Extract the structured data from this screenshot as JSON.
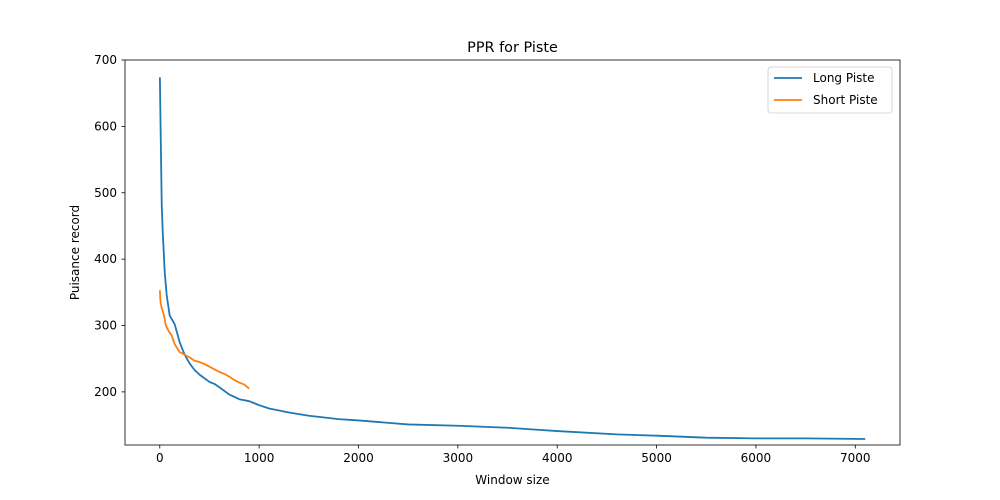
{
  "chart_data": {
    "type": "line",
    "title": "PPR for Piste",
    "xlabel": "Window size",
    "ylabel": "Puisance record",
    "xlim": [
      -350,
      7450
    ],
    "ylim": [
      120,
      700
    ],
    "xticks": [
      0,
      1000,
      2000,
      3000,
      4000,
      5000,
      6000,
      7000
    ],
    "yticks": [
      200,
      300,
      400,
      500,
      600,
      700
    ],
    "grid": false,
    "legend_position": "top-right",
    "series": [
      {
        "name": "Long Piste",
        "color": "#1f77b4",
        "x": [
          1,
          10,
          20,
          30,
          50,
          70,
          100,
          150,
          200,
          250,
          300,
          350,
          400,
          500,
          550,
          600,
          700,
          800,
          900,
          1000,
          1100,
          1300,
          1500,
          1800,
          2000,
          2500,
          3000,
          3500,
          3800,
          4000,
          4600,
          5000,
          5500,
          6000,
          6500,
          7100
        ],
        "y": [
          674,
          580,
          480,
          440,
          380,
          345,
          315,
          302,
          275,
          256,
          243,
          233,
          226,
          215,
          212,
          207,
          196,
          189,
          186,
          180,
          175,
          169,
          164,
          159,
          157,
          151,
          149,
          146,
          143,
          141,
          136,
          134,
          131,
          130,
          130,
          129
        ]
      },
      {
        "name": "Short Piste",
        "color": "#ff7f0e",
        "x": [
          1,
          5,
          10,
          20,
          40,
          60,
          80,
          100,
          120,
          150,
          200,
          250,
          300,
          350,
          400,
          450,
          500,
          550,
          600,
          650,
          700,
          750,
          800,
          850,
          900
        ],
        "y": [
          353,
          340,
          333,
          326,
          317,
          301,
          294,
          289,
          285,
          272,
          260,
          256,
          252,
          247,
          245,
          242,
          238,
          234,
          230,
          227,
          223,
          218,
          214,
          211,
          205
        ]
      }
    ]
  }
}
